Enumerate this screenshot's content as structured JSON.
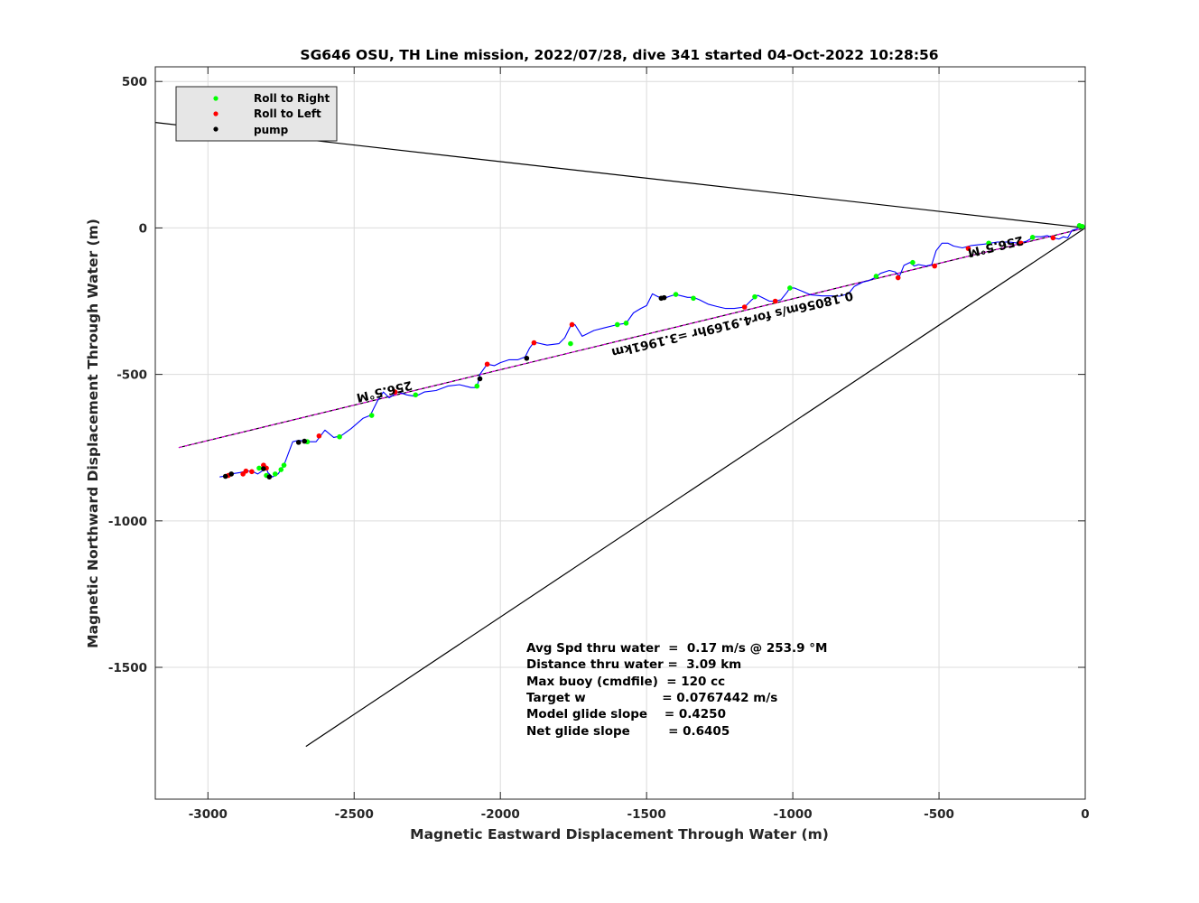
{
  "chart_data": {
    "type": "scatter",
    "title": "SG646 OSU, TH Line mission, 2022/07/28, dive 341 started 04-Oct-2022 10:28:56",
    "xlabel": "Magnetic Eastward Displacement Through Water (m)",
    "ylabel": "Magnetic Northward Displacement Through Water (m)",
    "xlim": [
      -3180,
      0
    ],
    "ylim": [
      -1950,
      550
    ],
    "xticks": [
      -3000,
      -2500,
      -2000,
      -1500,
      -1000,
      -500,
      0
    ],
    "yticks": [
      -1500,
      -1000,
      -500,
      0,
      500
    ],
    "grid": true,
    "legend_position": "top-left",
    "legend": [
      {
        "label": "Roll to Right",
        "color": "#00ff00"
      },
      {
        "label": "Roll to Left",
        "color": "#ff0000"
      },
      {
        "label": "pump",
        "color": "#000000"
      }
    ],
    "colors": {
      "track": "#0000ff",
      "heading_line": "#000000",
      "magenta_line": "#ff00ff",
      "roll_right": "#00ff00",
      "roll_left": "#ff0000",
      "pump": "#000000",
      "grid": "#dcdcdc"
    },
    "track": [
      [
        0,
        0
      ],
      [
        -8,
        5
      ],
      [
        -18,
        6
      ],
      [
        -30,
        -4
      ],
      [
        -45,
        -8
      ],
      [
        -60,
        -34
      ],
      [
        -75,
        -30
      ],
      [
        -90,
        -38
      ],
      [
        -110,
        -34
      ],
      [
        -130,
        -26
      ],
      [
        -150,
        -30
      ],
      [
        -175,
        -30
      ],
      [
        -200,
        -45
      ],
      [
        -225,
        -52
      ],
      [
        -260,
        -48
      ],
      [
        -300,
        -48
      ],
      [
        -345,
        -55
      ],
      [
        -390,
        -60
      ],
      [
        -420,
        -68
      ],
      [
        -450,
        -62
      ],
      [
        -470,
        -52
      ],
      [
        -490,
        -52
      ],
      [
        -510,
        -78
      ],
      [
        -525,
        -125
      ],
      [
        -545,
        -130
      ],
      [
        -570,
        -125
      ],
      [
        -585,
        -130
      ],
      [
        -600,
        -118
      ],
      [
        -620,
        -128
      ],
      [
        -635,
        -165
      ],
      [
        -650,
        -150
      ],
      [
        -670,
        -145
      ],
      [
        -700,
        -155
      ],
      [
        -720,
        -170
      ],
      [
        -740,
        -180
      ],
      [
        -760,
        -185
      ],
      [
        -790,
        -200
      ],
      [
        -810,
        -225
      ],
      [
        -840,
        -233
      ],
      [
        -870,
        -232
      ],
      [
        -900,
        -232
      ],
      [
        -940,
        -228
      ],
      [
        -970,
        -215
      ],
      [
        -995,
        -205
      ],
      [
        -1010,
        -205
      ],
      [
        -1020,
        -220
      ],
      [
        -1040,
        -245
      ],
      [
        -1060,
        -250
      ],
      [
        -1080,
        -250
      ],
      [
        -1100,
        -240
      ],
      [
        -1120,
        -230
      ],
      [
        -1140,
        -245
      ],
      [
        -1165,
        -270
      ],
      [
        -1200,
        -275
      ],
      [
        -1230,
        -275
      ],
      [
        -1260,
        -268
      ],
      [
        -1290,
        -260
      ],
      [
        -1320,
        -245
      ],
      [
        -1340,
        -237
      ],
      [
        -1360,
        -237
      ],
      [
        -1380,
        -232
      ],
      [
        -1400,
        -227
      ],
      [
        -1420,
        -233
      ],
      [
        -1440,
        -240
      ],
      [
        -1460,
        -235
      ],
      [
        -1480,
        -225
      ],
      [
        -1500,
        -265
      ],
      [
        -1520,
        -275
      ],
      [
        -1545,
        -290
      ],
      [
        -1570,
        -325
      ],
      [
        -1600,
        -330
      ],
      [
        -1640,
        -340
      ],
      [
        -1680,
        -350
      ],
      [
        -1720,
        -370
      ],
      [
        -1745,
        -330
      ],
      [
        -1760,
        -335
      ],
      [
        -1780,
        -375
      ],
      [
        -1800,
        -395
      ],
      [
        -1840,
        -400
      ],
      [
        -1885,
        -390
      ],
      [
        -1900,
        -410
      ],
      [
        -1915,
        -440
      ],
      [
        -1940,
        -450
      ],
      [
        -1970,
        -450
      ],
      [
        -2000,
        -460
      ],
      [
        -2020,
        -470
      ],
      [
        -2045,
        -465
      ],
      [
        -2070,
        -500
      ],
      [
        -2080,
        -545
      ],
      [
        -2100,
        -545
      ],
      [
        -2140,
        -535
      ],
      [
        -2180,
        -540
      ],
      [
        -2220,
        -555
      ],
      [
        -2260,
        -560
      ],
      [
        -2290,
        -575
      ],
      [
        -2320,
        -570
      ],
      [
        -2350,
        -560
      ],
      [
        -2380,
        -580
      ],
      [
        -2400,
        -560
      ],
      [
        -2420,
        -590
      ],
      [
        -2445,
        -640
      ],
      [
        -2470,
        -650
      ],
      [
        -2510,
        -685
      ],
      [
        -2545,
        -710
      ],
      [
        -2570,
        -715
      ],
      [
        -2600,
        -690
      ],
      [
        -2630,
        -730
      ],
      [
        -2660,
        -730
      ],
      [
        -2690,
        -725
      ],
      [
        -2710,
        -730
      ],
      [
        -2740,
        -810
      ],
      [
        -2760,
        -840
      ],
      [
        -2780,
        -850
      ],
      [
        -2795,
        -835
      ],
      [
        -2805,
        -805
      ],
      [
        -2815,
        -830
      ],
      [
        -2830,
        -840
      ],
      [
        -2850,
        -830
      ],
      [
        -2870,
        -830
      ],
      [
        -2890,
        -835
      ],
      [
        -2910,
        -838
      ],
      [
        -2930,
        -845
      ],
      [
        -2960,
        -850
      ]
    ],
    "roll_right_points": [
      [
        -20,
        8
      ],
      [
        -10,
        5
      ],
      [
        -180,
        -32
      ],
      [
        -330,
        -52
      ],
      [
        -590,
        -118
      ],
      [
        -715,
        -165
      ],
      [
        -1010,
        -205
      ],
      [
        -1130,
        -235
      ],
      [
        -1340,
        -240
      ],
      [
        -1400,
        -227
      ],
      [
        -1570,
        -325
      ],
      [
        -1600,
        -330
      ],
      [
        -1760,
        -395
      ],
      [
        -2080,
        -540
      ],
      [
        -2290,
        -570
      ],
      [
        -2440,
        -640
      ],
      [
        -2550,
        -713
      ],
      [
        -2660,
        -730
      ],
      [
        -2740,
        -810
      ],
      [
        -2750,
        -825
      ],
      [
        -2770,
        -840
      ],
      [
        -2800,
        -845
      ],
      [
        -2825,
        -820
      ]
    ],
    "roll_left_points": [
      [
        -110,
        -34
      ],
      [
        -220,
        -52
      ],
      [
        -400,
        -70
      ],
      [
        -515,
        -130
      ],
      [
        -640,
        -170
      ],
      [
        -1060,
        -250
      ],
      [
        -1165,
        -270
      ],
      [
        -1755,
        -330
      ],
      [
        -1885,
        -392
      ],
      [
        -2045,
        -465
      ],
      [
        -2360,
        -560
      ],
      [
        -2620,
        -710
      ],
      [
        -2800,
        -820
      ],
      [
        -2810,
        -810
      ],
      [
        -2850,
        -832
      ],
      [
        -2870,
        -830
      ],
      [
        -2930,
        -845
      ],
      [
        -2880,
        -840
      ]
    ],
    "pump_points": [
      [
        -1450,
        -240
      ],
      [
        -1440,
        -238
      ],
      [
        -1910,
        -445
      ],
      [
        -2070,
        -515
      ],
      [
        -2690,
        -732
      ],
      [
        -2670,
        -728
      ],
      [
        -2790,
        -850
      ],
      [
        -2810,
        -822
      ],
      [
        -2940,
        -848
      ],
      [
        -2920,
        -840
      ]
    ],
    "lines": {
      "heading_upper": {
        "from": [
          0,
          0
        ],
        "to": [
          -3180,
          360
        ]
      },
      "heading_lower": {
        "from": [
          0,
          0
        ],
        "to": [
          -2665,
          -1770
        ]
      },
      "mean_course": {
        "from": [
          0,
          0
        ],
        "to": [
          -3100,
          -750
        ]
      }
    },
    "annotations": [
      {
        "text": "256.5°M",
        "at": [
          -310,
          -50
        ],
        "rotate": 166.5
      },
      {
        "text": "0.18056m/s for4.9169hr =3.1961km",
        "at": [
          -1210,
          -315
        ],
        "rotate": 166.5
      },
      {
        "text": "256.5°M",
        "at": [
          -2400,
          -545
        ],
        "rotate": 166.5
      }
    ],
    "stats": [
      "Avg Spd thru water  =  0.17 m/s @ 253.9 °M",
      "Distance thru water =  3.09 km",
      "Max buoy (cmdfile)  = 120 cc",
      "Target w                  = 0.0767442 m/s",
      "Model glide slope    = 0.4250",
      "Net glide slope         = 0.6405"
    ]
  }
}
